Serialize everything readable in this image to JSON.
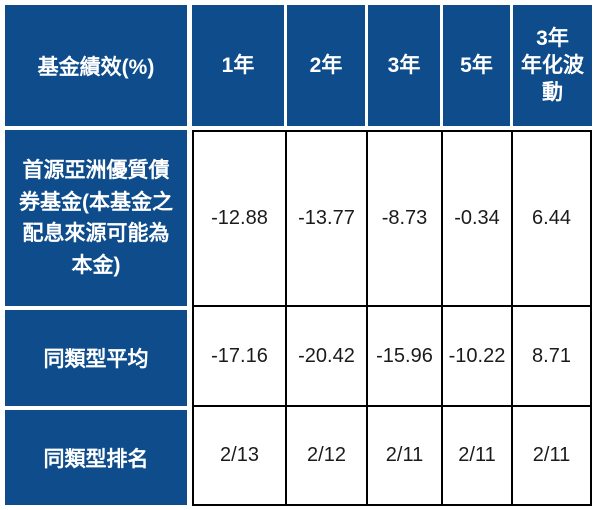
{
  "table": {
    "corner_header": "基金績效(%)",
    "columns": [
      "1年",
      "2年",
      "3年",
      "5年",
      "3年\n年化波\n動"
    ],
    "rows": [
      {
        "label": "首源亞洲優質債\n券基金(本基金之\n配息來源可能為\n本金)",
        "values": [
          "-12.88",
          "-13.77",
          "-8.73",
          "-0.34",
          "6.44"
        ]
      },
      {
        "label": "同類型平均",
        "values": [
          "-17.16",
          "-20.42",
          "-15.96",
          "-10.22",
          "8.71"
        ]
      },
      {
        "label": "同類型排名",
        "values": [
          "2/13",
          "2/12",
          "2/11",
          "2/11",
          "2/11"
        ]
      }
    ],
    "colors": {
      "header_bg": "#0E4C8C",
      "header_text": "#FFFFFF",
      "cell_bg": "#FFFFFF",
      "cell_text": "#1B1B1B",
      "cell_border": "#000000"
    }
  },
  "chart_data": {
    "type": "table",
    "title": "基金績效(%)",
    "columns": [
      "1年",
      "2年",
      "3年",
      "5年",
      "3年年化波動"
    ],
    "rows": [
      {
        "label": "首源亞洲優質債券基金(本基金之配息來源可能為本金)",
        "values": [
          -12.88,
          -13.77,
          -8.73,
          -0.34,
          6.44
        ]
      },
      {
        "label": "同類型平均",
        "values": [
          -17.16,
          -20.42,
          -15.96,
          -10.22,
          8.71
        ]
      },
      {
        "label": "同類型排名",
        "values": [
          "2/13",
          "2/12",
          "2/11",
          "2/11",
          "2/11"
        ]
      }
    ]
  }
}
